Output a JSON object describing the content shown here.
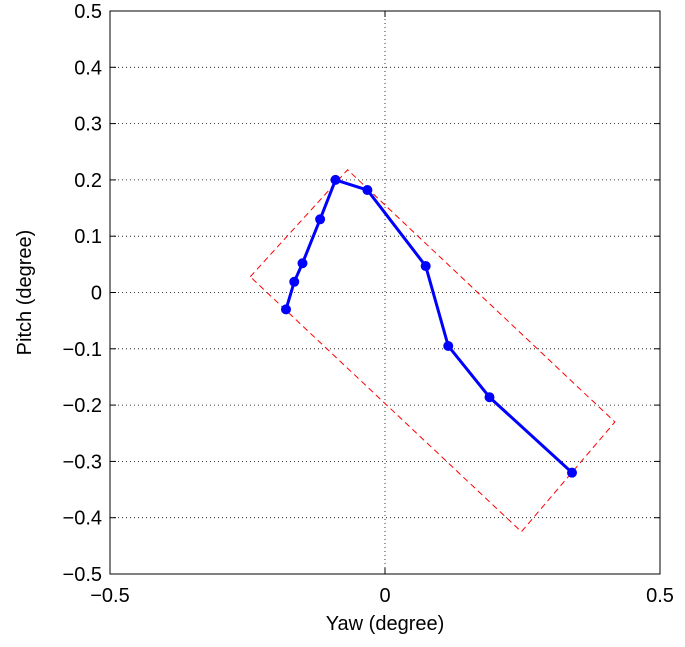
{
  "chart_data": {
    "type": "line",
    "title": "",
    "xlabel": "Yaw (degree)",
    "ylabel": "Pitch (degree)",
    "xlim": [
      -0.5,
      0.5
    ],
    "ylim": [
      -0.5,
      0.5
    ],
    "x_ticks": [
      -0.5,
      0,
      0.5
    ],
    "x_tick_labels": [
      "−0.5",
      "0",
      "0.5"
    ],
    "y_ticks": [
      -0.5,
      -0.4,
      -0.3,
      -0.2,
      -0.1,
      0,
      0.1,
      0.2,
      0.3,
      0.4,
      0.5
    ],
    "y_tick_labels": [
      "−0.5",
      "−0.4",
      "−0.3",
      "−0.2",
      "−0.1",
      "0",
      "0.1",
      "0.2",
      "0.3",
      "0.4",
      "0.5"
    ],
    "grid": true,
    "legend": "none",
    "series": [
      {
        "style": "solid line with circle markers",
        "color": "#0000ff",
        "x": [
          -0.18,
          -0.165,
          -0.15,
          -0.118,
          -0.09,
          -0.032,
          0.074,
          0.115,
          0.19,
          0.34
        ],
        "y": [
          -0.03,
          0.019,
          0.052,
          0.13,
          0.2,
          0.182,
          0.047,
          -0.095,
          -0.186,
          -0.32
        ]
      },
      {
        "style": "dashed line",
        "color": "#ff0000",
        "x": [
          -0.245,
          -0.068,
          0.418,
          0.248,
          -0.245
        ],
        "y": [
          0.028,
          0.218,
          -0.23,
          -0.425,
          0.028
        ]
      }
    ]
  }
}
